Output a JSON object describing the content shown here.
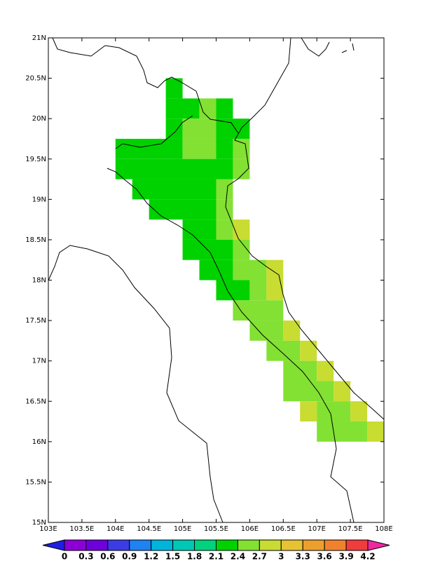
{
  "chart_data": {
    "type": "gridmap",
    "xlim": [
      103,
      108
    ],
    "ylim": [
      15,
      21
    ],
    "xticks": [
      {
        "value": 103,
        "label": "103E"
      },
      {
        "value": 103.5,
        "label": "103.5E"
      },
      {
        "value": 104,
        "label": "104E"
      },
      {
        "value": 104.5,
        "label": "104.5E"
      },
      {
        "value": 105,
        "label": "105E"
      },
      {
        "value": 105.5,
        "label": "105.5E"
      },
      {
        "value": 106,
        "label": "106E"
      },
      {
        "value": 106.5,
        "label": "106.5E"
      },
      {
        "value": 107,
        "label": "107E"
      },
      {
        "value": 107.5,
        "label": "107.5E"
      },
      {
        "value": 108,
        "label": "108E"
      }
    ],
    "yticks": [
      {
        "value": 15,
        "label": "15N"
      },
      {
        "value": 15.5,
        "label": "15.5N"
      },
      {
        "value": 16,
        "label": "16N"
      },
      {
        "value": 16.5,
        "label": "16.5N"
      },
      {
        "value": 17,
        "label": "17N"
      },
      {
        "value": 17.5,
        "label": "17.5N"
      },
      {
        "value": 18,
        "label": "18N"
      },
      {
        "value": 18.5,
        "label": "18.5N"
      },
      {
        "value": 19,
        "label": "19N"
      },
      {
        "value": 19.5,
        "label": "19.5N"
      },
      {
        "value": 20,
        "label": "20N"
      },
      {
        "value": 20.5,
        "label": "20.5N"
      },
      {
        "value": 21,
        "label": "21N"
      }
    ],
    "levels": [
      0,
      0.3,
      0.6,
      0.9,
      1.2,
      1.5,
      1.8,
      2.1,
      2.4,
      2.7,
      3,
      3.3,
      3.6,
      3.9,
      4.2
    ],
    "colors": [
      "#1e1ee6",
      "#8c00d7",
      "#6e00dc",
      "#3c3ce6",
      "#1e82f0",
      "#00b4dc",
      "#00c8b4",
      "#00d27d",
      "#00d200",
      "#82e132",
      "#c8dc32",
      "#e6c332",
      "#eba02d",
      "#f0822d",
      "#f03c3c",
      "#f028a0"
    ],
    "cells": [
      [
        20.25,
        104.75,
        105.0,
        2.25
      ],
      [
        20.0,
        104.75,
        105.25,
        2.25
      ],
      [
        20.0,
        105.25,
        105.5,
        2.55
      ],
      [
        20.0,
        105.5,
        105.75,
        2.25
      ],
      [
        19.75,
        104.75,
        105.0,
        2.25
      ],
      [
        19.75,
        105.0,
        105.5,
        2.55
      ],
      [
        19.75,
        105.5,
        106.0,
        2.25
      ],
      [
        19.5,
        104.0,
        105.0,
        2.25
      ],
      [
        19.5,
        105.0,
        105.5,
        2.55
      ],
      [
        19.5,
        105.5,
        105.75,
        2.25
      ],
      [
        19.5,
        105.75,
        106.0,
        2.55
      ],
      [
        19.25,
        104.0,
        105.75,
        2.25
      ],
      [
        19.25,
        105.75,
        106.0,
        2.55
      ],
      [
        19.0,
        104.25,
        105.5,
        2.25
      ],
      [
        19.0,
        105.5,
        105.75,
        2.55
      ],
      [
        18.75,
        104.5,
        105.5,
        2.25
      ],
      [
        18.75,
        105.5,
        105.75,
        2.55
      ],
      [
        18.5,
        105.0,
        105.5,
        2.25
      ],
      [
        18.5,
        105.5,
        105.75,
        2.55
      ],
      [
        18.5,
        105.75,
        106.0,
        2.85
      ],
      [
        18.25,
        105.0,
        105.75,
        2.25
      ],
      [
        18.25,
        105.75,
        106.0,
        2.55
      ],
      [
        18.0,
        105.25,
        105.75,
        2.25
      ],
      [
        18.0,
        105.75,
        106.25,
        2.55
      ],
      [
        18.0,
        106.25,
        106.5,
        2.85
      ],
      [
        17.75,
        105.5,
        106.0,
        2.25
      ],
      [
        17.75,
        106.0,
        106.25,
        2.55
      ],
      [
        17.75,
        106.25,
        106.5,
        2.85
      ],
      [
        17.5,
        105.75,
        106.5,
        2.55
      ],
      [
        17.25,
        106.0,
        106.5,
        2.55
      ],
      [
        17.25,
        106.5,
        106.75,
        2.85
      ],
      [
        17.0,
        106.25,
        106.75,
        2.55
      ],
      [
        17.0,
        106.75,
        107.0,
        2.85
      ],
      [
        16.75,
        106.5,
        107.0,
        2.55
      ],
      [
        16.75,
        107.0,
        107.25,
        2.85
      ],
      [
        16.5,
        106.5,
        107.25,
        2.55
      ],
      [
        16.5,
        107.25,
        107.5,
        2.85
      ],
      [
        16.25,
        106.75,
        107.0,
        2.85
      ],
      [
        16.25,
        107.0,
        107.5,
        2.55
      ],
      [
        16.25,
        107.5,
        107.75,
        2.85
      ],
      [
        16.0,
        107.0,
        107.75,
        2.55
      ],
      [
        16.0,
        107.75,
        108.0,
        2.85
      ]
    ]
  }
}
